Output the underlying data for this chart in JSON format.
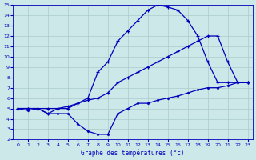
{
  "title": "Graphe des températures (°c)",
  "background_color": "#cce8e8",
  "grid_color": "#aacccc",
  "line_color": "#0000bb",
  "xlim": [
    -0.5,
    23.5
  ],
  "ylim": [
    2,
    15
  ],
  "xticks": [
    0,
    1,
    2,
    3,
    4,
    5,
    6,
    7,
    8,
    9,
    10,
    11,
    12,
    13,
    14,
    15,
    16,
    17,
    18,
    19,
    20,
    21,
    22,
    23
  ],
  "yticks": [
    2,
    3,
    4,
    5,
    6,
    7,
    8,
    9,
    10,
    11,
    12,
    13,
    14,
    15
  ],
  "series_top": {
    "x": [
      0,
      1,
      2,
      3,
      4,
      5,
      6,
      7,
      8,
      9,
      10,
      11,
      12,
      13,
      14,
      15,
      16,
      17,
      18,
      19,
      20,
      21,
      22,
      23
    ],
    "y": [
      5.0,
      5.0,
      5.0,
      4.5,
      5.0,
      5.0,
      5.5,
      6.0,
      8.5,
      9.5,
      11.5,
      12.5,
      13.5,
      14.5,
      15.0,
      14.8,
      14.5,
      13.5,
      12.0,
      9.5,
      7.5,
      7.5,
      7.5,
      7.5
    ]
  },
  "series_mid": {
    "x": [
      0,
      1,
      2,
      3,
      4,
      5,
      6,
      7,
      8,
      9,
      10,
      11,
      12,
      13,
      14,
      15,
      16,
      17,
      18,
      19,
      20,
      21,
      22,
      23
    ],
    "y": [
      5.0,
      5.0,
      5.0,
      5.0,
      5.0,
      5.2,
      5.5,
      5.8,
      6.0,
      6.5,
      7.5,
      8.0,
      8.5,
      9.0,
      9.5,
      10.0,
      10.5,
      11.0,
      11.5,
      12.0,
      12.0,
      9.5,
      7.5,
      7.5
    ]
  },
  "series_bot": {
    "x": [
      0,
      1,
      2,
      3,
      4,
      5,
      6,
      7,
      8,
      9,
      10,
      11,
      12,
      13,
      14,
      15,
      16,
      17,
      18,
      19,
      20,
      21,
      22,
      23
    ],
    "y": [
      5.0,
      4.8,
      5.0,
      4.5,
      4.5,
      4.5,
      3.5,
      2.8,
      2.5,
      2.5,
      4.5,
      5.0,
      5.5,
      5.5,
      5.8,
      6.0,
      6.2,
      6.5,
      6.8,
      7.0,
      7.0,
      7.2,
      7.5,
      7.5
    ]
  }
}
